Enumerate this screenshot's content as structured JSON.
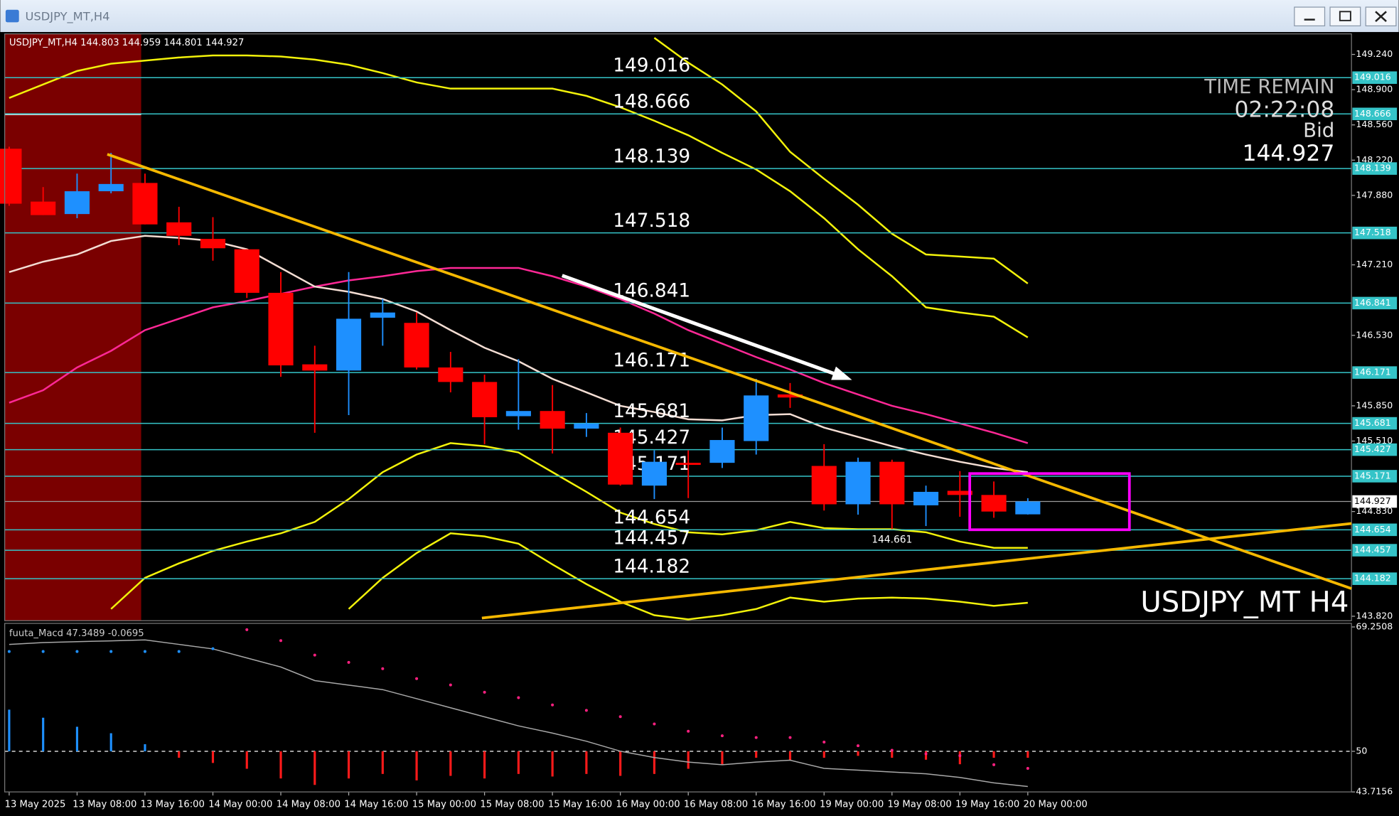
{
  "window": {
    "title": "USDJPY_MT,H4"
  },
  "chart_data": [
    {
      "type": "candlestick",
      "symbol_label": "USDJPY_MT,H4",
      "watermark": "USDJPY_MT H4",
      "time_remain": {
        "label": "TIME REMAIN",
        "value": "02:22:08"
      },
      "bid": {
        "label": "Bid",
        "value": 144.927
      },
      "categories": [
        "13 May 2025",
        null,
        "13 May 08:00",
        null,
        "13 May 16:00",
        null,
        "14 May 00:00",
        null,
        "14 May 08:00",
        null,
        "14 May 16:00",
        null,
        "15 May 00:00",
        null,
        "15 May 08:00",
        null,
        "15 May 16:00",
        null,
        "16 May 00:00",
        null,
        "16 May 08:00",
        null,
        "16 May 16:00",
        null,
        "19 May 00:00",
        null,
        "19 May 08:00",
        null,
        "19 May 16:00",
        null,
        "20 May 00:00"
      ],
      "open": [
        148.33,
        147.82,
        147.7,
        147.92,
        148.0,
        147.62,
        147.46,
        147.36,
        146.94,
        146.25,
        146.19,
        146.7,
        146.65,
        146.22,
        146.08,
        145.75,
        145.8,
        145.63,
        145.59,
        145.08,
        145.3,
        145.3,
        145.51,
        145.96,
        145.27,
        144.9,
        145.31,
        144.89,
        145.03,
        144.99,
        144.803
      ],
      "high": [
        148.35,
        147.96,
        148.09,
        148.29,
        148.09,
        147.77,
        147.67,
        147.36,
        147.14,
        146.43,
        147.14,
        146.88,
        146.75,
        146.37,
        146.15,
        146.3,
        146.05,
        145.78,
        145.64,
        145.42,
        145.42,
        145.64,
        146.11,
        146.07,
        145.48,
        145.35,
        145.33,
        145.08,
        145.22,
        145.12,
        144.959
      ],
      "low": [
        147.78,
        147.69,
        147.66,
        147.9,
        147.6,
        147.4,
        147.25,
        146.89,
        146.13,
        145.59,
        145.76,
        146.43,
        146.2,
        145.98,
        145.48,
        145.62,
        145.39,
        145.55,
        145.08,
        144.95,
        144.96,
        145.25,
        145.38,
        145.83,
        144.84,
        144.8,
        144.661,
        144.69,
        144.78,
        144.77,
        144.801
      ],
      "close": [
        147.8,
        147.69,
        147.92,
        147.99,
        147.6,
        147.49,
        147.37,
        146.94,
        146.24,
        146.19,
        146.69,
        146.75,
        146.22,
        146.08,
        145.74,
        145.8,
        145.63,
        145.68,
        145.09,
        145.31,
        145.28,
        145.52,
        145.95,
        145.93,
        144.9,
        145.31,
        144.9,
        145.02,
        144.99,
        144.83,
        144.927
      ],
      "up_color": "#1e90ff",
      "down_color": "#ff0000",
      "ylim": [
        143.777,
        149.438
      ],
      "yticks": [
        {
          "value": 149.24,
          "label": "149.240"
        },
        {
          "value": 148.9,
          "label": "148.900"
        },
        {
          "value": 148.56,
          "label": "148.560"
        },
        {
          "value": 148.22,
          "label": "148.220"
        },
        {
          "value": 147.88,
          "label": "147.880"
        },
        {
          "value": 147.21,
          "label": "147.210"
        },
        {
          "value": 146.53,
          "label": "146.530"
        },
        {
          "value": 145.85,
          "label": "145.850"
        },
        {
          "value": 145.51,
          "label": "145.510"
        },
        {
          "value": 144.83,
          "label": "144.830"
        },
        {
          "value": 143.82,
          "label": "143.820"
        }
      ],
      "levels": [
        149.016,
        148.666,
        148.139,
        147.518,
        146.841,
        146.171,
        145.681,
        145.427,
        145.171,
        144.654,
        144.457,
        144.182
      ],
      "level_color": "#35c4c8",
      "overlays": [
        {
          "color": "#f2f20a",
          "values": [
            148.82,
            148.95,
            149.08,
            149.15,
            149.18,
            149.21,
            149.23,
            149.23,
            149.22,
            149.19,
            149.14,
            149.06,
            148.97,
            148.91,
            148.91,
            148.91,
            148.91,
            148.84,
            148.73,
            148.6,
            148.46,
            148.29,
            148.13,
            147.92,
            147.66,
            147.36,
            147.1,
            146.8,
            146.75,
            146.71,
            146.51
          ]
        },
        {
          "color": "#f2f20a",
          "values": [
            null,
            null,
            null,
            null,
            null,
            null,
            null,
            null,
            null,
            null,
            null,
            null,
            null,
            null,
            null,
            null,
            null,
            null,
            null,
            149.4,
            149.16,
            148.95,
            148.69,
            148.3,
            148.04,
            147.79,
            147.51,
            147.31,
            147.29,
            147.27,
            147.03
          ]
        },
        {
          "color": "#f2f20a",
          "values": [
            null,
            null,
            null,
            143.89,
            144.19,
            144.33,
            144.45,
            144.54,
            144.62,
            144.73,
            144.95,
            145.21,
            145.38,
            145.49,
            145.46,
            145.4,
            145.21,
            145.02,
            144.82,
            144.71,
            144.63,
            144.61,
            144.65,
            144.73,
            144.67,
            144.66,
            144.66,
            144.63,
            144.54,
            144.48,
            144.48
          ]
        },
        {
          "color": "#f2f20a",
          "values": [
            null,
            null,
            null,
            null,
            null,
            null,
            null,
            null,
            null,
            null,
            143.89,
            144.19,
            144.43,
            144.62,
            144.59,
            144.52,
            144.32,
            144.13,
            143.96,
            143.83,
            143.79,
            143.83,
            143.89,
            144.0,
            143.96,
            143.99,
            144.0,
            143.99,
            143.96,
            143.92,
            143.95
          ]
        },
        {
          "color": "#ff2896",
          "values": [
            145.88,
            146.0,
            146.22,
            146.38,
            146.58,
            146.69,
            146.8,
            146.86,
            146.93,
            147.0,
            147.06,
            147.1,
            147.15,
            147.18,
            147.18,
            147.18,
            147.1,
            147.0,
            146.88,
            146.74,
            146.58,
            146.45,
            146.32,
            146.2,
            146.07,
            145.96,
            145.85,
            145.77,
            145.68,
            145.59,
            145.49
          ]
        },
        {
          "color": "#f3ddd3",
          "values": [
            147.14,
            147.24,
            147.31,
            147.44,
            147.49,
            147.47,
            147.44,
            147.36,
            147.18,
            147.0,
            146.95,
            146.88,
            146.76,
            146.58,
            146.41,
            146.28,
            146.11,
            145.98,
            145.85,
            145.79,
            145.72,
            145.71,
            145.76,
            145.77,
            145.64,
            145.55,
            145.46,
            145.38,
            145.31,
            145.25,
            145.21
          ]
        }
      ]
    },
    {
      "type": "oscillator",
      "name": "fuuta_Macd",
      "readouts": [
        47.3489,
        -0.0695
      ],
      "ylim": [
        43.7156,
        69.2508
      ],
      "yticks": [
        69.2508,
        50,
        43.7156
      ],
      "histogram_base": 50,
      "histogram": [
        56.45,
        55.2,
        53.8,
        52.8,
        51.1,
        49.0,
        48.2,
        47.3,
        45.8,
        44.8,
        45.8,
        46.5,
        45.5,
        46.2,
        45.8,
        46.5,
        46.1,
        46.5,
        46.2,
        46.5,
        47.3,
        48.0,
        49.0,
        48.6,
        49.0,
        49.3,
        49.0,
        48.7,
        48.0,
        49.0,
        49.0
      ],
      "line": [
        66.55,
        66.83,
        66.97,
        67.1,
        67.24,
        66.55,
        65.85,
        64.45,
        63.05,
        60.95,
        60.25,
        59.55,
        58.15,
        56.74,
        55.34,
        53.94,
        52.82,
        51.56,
        50.02,
        49.04,
        48.34,
        47.92,
        48.34,
        48.62,
        47.36,
        47.08,
        46.8,
        46.52,
        45.96,
        45.12,
        44.56
      ],
      "signal_up": [
        65.45,
        65.45,
        65.45,
        65.45,
        65.45,
        65.45,
        65.88,
        null,
        null,
        null,
        null,
        null,
        null,
        null,
        null,
        null,
        null,
        null,
        null,
        null,
        null,
        null,
        null,
        null,
        null,
        null,
        null,
        null,
        null,
        null,
        null
      ],
      "signal_down": [
        null,
        null,
        null,
        null,
        null,
        null,
        null,
        68.82,
        67.14,
        64.89,
        63.77,
        62.79,
        61.25,
        60.27,
        59.14,
        58.3,
        57.18,
        56.34,
        55.36,
        54.23,
        53.11,
        52.41,
        52.13,
        52.13,
        51.43,
        50.87,
        50.17,
        49.61,
        49.33,
        47.93,
        47.36
      ],
      "up_color": "#1e90ff",
      "down_color": "#ff1a1a",
      "line_color": "#a8a8a8",
      "signal_up_color": "#1e90ff",
      "signal_down_color": "#ff2080"
    }
  ]
}
